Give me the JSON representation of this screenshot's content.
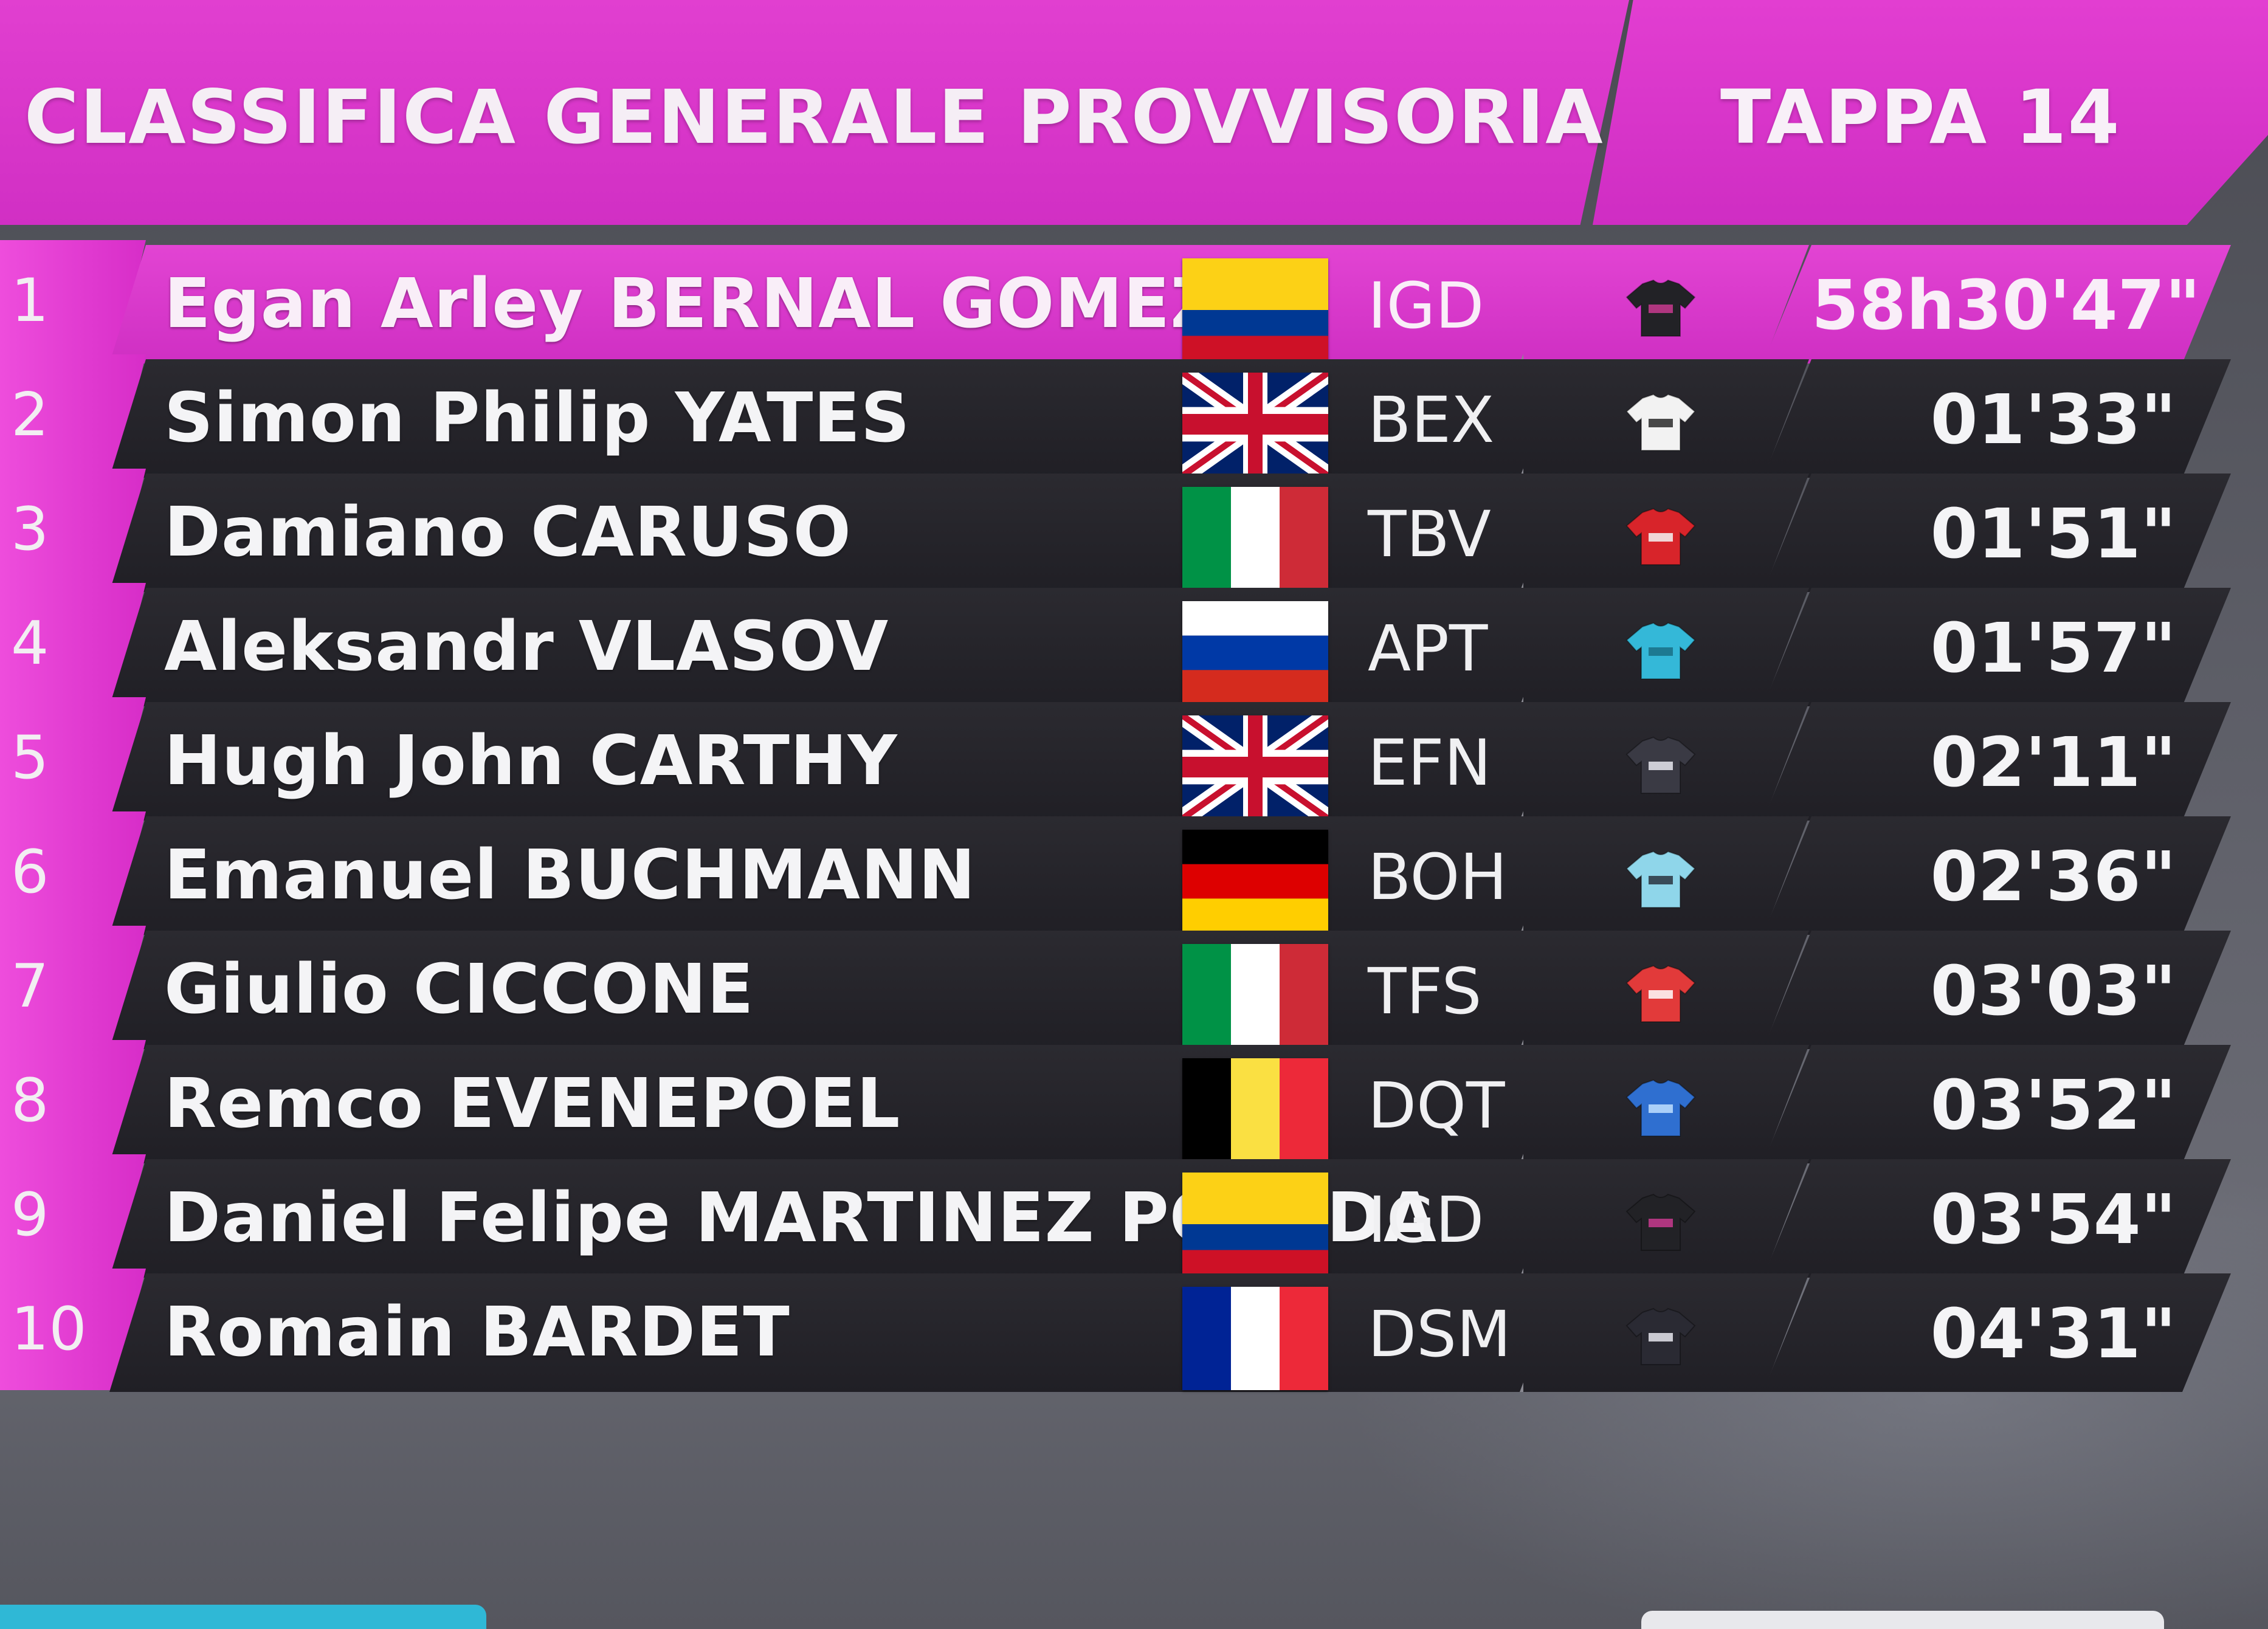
{
  "header": {
    "title": "CLASSIFICA GENERALE PROVVISORIA",
    "stage": "TAPPA 14"
  },
  "colors": {
    "accent_magenta": "#d92fc8",
    "panel_dark": "#24232a",
    "text_light": "#f4f4f6"
  },
  "rows": [
    {
      "rank": "1",
      "name": "Egan Arley BERNAL GOMEZ",
      "flag": "colombia",
      "team": "IGD",
      "jersey_icon": "jersey-black-icon",
      "time": "58h30'47\""
    },
    {
      "rank": "2",
      "name": "Simon Philip YATES",
      "flag": "united-kingdom",
      "team": "BEX",
      "jersey_icon": "jersey-white-icon",
      "time": "01'33\""
    },
    {
      "rank": "3",
      "name": "Damiano CARUSO",
      "flag": "italy",
      "team": "TBV",
      "jersey_icon": "jersey-red-icon",
      "time": "01'51\""
    },
    {
      "rank": "4",
      "name": "Aleksandr VLASOV",
      "flag": "russia",
      "team": "APT",
      "jersey_icon": "jersey-turquoise-icon",
      "time": "01'57\""
    },
    {
      "rank": "5",
      "name": "Hugh John CARTHY",
      "flag": "united-kingdom",
      "team": "EFN",
      "jersey_icon": "jersey-checkered-icon",
      "time": "02'11\""
    },
    {
      "rank": "6",
      "name": "Emanuel BUCHMANN",
      "flag": "germany",
      "team": "BOH",
      "jersey_icon": "jersey-lightblue-icon",
      "time": "02'36\""
    },
    {
      "rank": "7",
      "name": "Giulio CICCONE",
      "flag": "italy",
      "team": "TFS",
      "jersey_icon": "jersey-redwhite-icon",
      "time": "03'03\""
    },
    {
      "rank": "8",
      "name": "Remco EVENEPOEL",
      "flag": "belgium",
      "team": "DQT",
      "jersey_icon": "jersey-blue-icon",
      "time": "03'52\""
    },
    {
      "rank": "9",
      "name": "Daniel Felipe MARTINEZ POVEDA",
      "flag": "colombia",
      "team": "IGD",
      "jersey_icon": "jersey-black-icon",
      "time": "03'54\""
    },
    {
      "rank": "10",
      "name": "Romain BARDET",
      "flag": "france",
      "team": "DSM",
      "jersey_icon": "jersey-striped-icon",
      "time": "04'31\""
    }
  ]
}
